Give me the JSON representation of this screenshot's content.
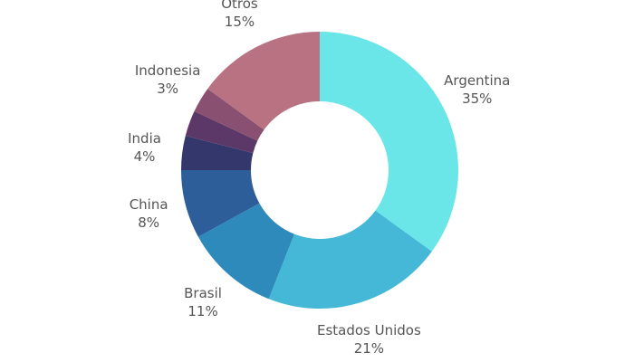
{
  "chart_data": {
    "type": "donut",
    "categories": [
      "Argentina",
      "Estados Unidos",
      "Brasil",
      "China",
      "India",
      null,
      "Indonesia",
      "Otros"
    ],
    "values": [
      35,
      21,
      11,
      8,
      4,
      3,
      3,
      15
    ],
    "value_labels": [
      "35%",
      "21%",
      "11%",
      "8%",
      "4%",
      null,
      "3%",
      "15%"
    ],
    "colors": [
      "#6ae6e8",
      "#44b8d6",
      "#2e8abb",
      "#2d5e99",
      "#33376c",
      "#5c3868",
      "#8a5072",
      "#b87282"
    ]
  }
}
